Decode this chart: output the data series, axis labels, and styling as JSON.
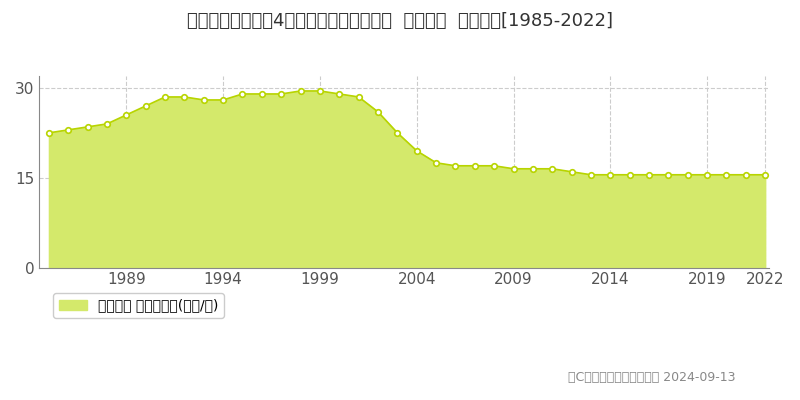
{
  "title": "岡山県玉野市田丹4丁目５３３１番１０外  地価公示  地価推移[1985-2022]",
  "years": [
    1985,
    1986,
    1987,
    1988,
    1989,
    1990,
    1991,
    1992,
    1993,
    1994,
    1995,
    1996,
    1997,
    1998,
    1999,
    2000,
    2001,
    2002,
    2003,
    2004,
    2005,
    2006,
    2007,
    2008,
    2009,
    2010,
    2011,
    2012,
    2013,
    2014,
    2015,
    2016,
    2017,
    2018,
    2019,
    2020,
    2021,
    2022
  ],
  "values": [
    22.5,
    23.0,
    23.5,
    24.0,
    25.5,
    27.0,
    28.5,
    28.5,
    28.0,
    28.0,
    29.0,
    29.0,
    29.0,
    29.5,
    29.5,
    29.0,
    28.5,
    26.0,
    22.5,
    19.5,
    17.5,
    17.0,
    17.0,
    17.0,
    16.5,
    16.5,
    16.5,
    16.0,
    15.5,
    15.5,
    15.5,
    15.5,
    15.5,
    15.5,
    15.5,
    15.5,
    15.5,
    15.5
  ],
  "fill_color": "#d4e96b",
  "line_color": "#b8d400",
  "marker_color": "#ffffff",
  "marker_edge_color": "#b8d400",
  "background_color": "#ffffff",
  "grid_color": "#cccccc",
  "yticks": [
    0,
    15,
    30
  ],
  "xticks": [
    1989,
    1994,
    1999,
    2004,
    2009,
    2014,
    2019,
    2022
  ],
  "ylim": [
    0,
    32
  ],
  "xlim": [
    1985,
    2022
  ],
  "legend_label": "地価公示 平均坂単価(万円/坤)",
  "copyright_text": "（C）土地価格ドットコム 2024-09-13",
  "title_fontsize": 13,
  "tick_fontsize": 11,
  "legend_fontsize": 10,
  "copyright_fontsize": 9
}
